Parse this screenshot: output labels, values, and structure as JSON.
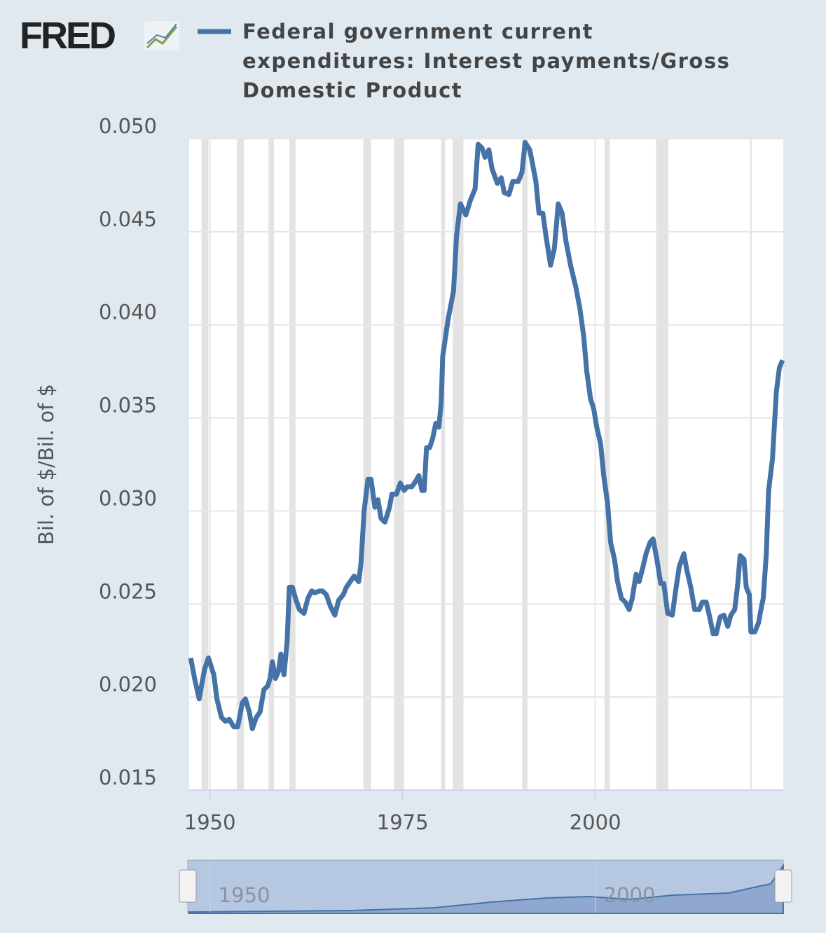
{
  "logo": "FRED",
  "chart_data": {
    "type": "line",
    "series": [
      {
        "name": "Federal government current expenditures: Interest payments/Gross Domestic Product",
        "color": "#4572a7",
        "values": [
          0.0221,
          0.021,
          0.0199,
          0.0215,
          0.0221,
          0.0212,
          0.0199,
          0.0189,
          0.0187,
          0.0188,
          0.0184,
          0.0184,
          0.0197,
          0.0199,
          0.0192,
          0.0183,
          0.0189,
          0.0192,
          0.0204,
          0.0206,
          0.021,
          0.0219,
          0.021,
          0.0214,
          0.0223,
          0.0212,
          0.0229,
          0.0259,
          0.0259,
          0.0253,
          0.0247,
          0.0245,
          0.0253,
          0.0257,
          0.0256,
          0.0257,
          0.0257,
          0.0255,
          0.0249,
          0.0244,
          0.0252,
          0.0255,
          0.0259,
          0.0262,
          0.0265,
          0.0262,
          0.0272,
          0.03,
          0.0317,
          0.0317,
          0.0302,
          0.0306,
          0.0296,
          0.0294,
          0.0302,
          0.0309,
          0.0309,
          0.0315,
          0.0311,
          0.0313,
          0.0313,
          0.0316,
          0.0319,
          0.0311,
          0.0311,
          0.0334,
          0.0334,
          0.0339,
          0.0347,
          0.0345,
          0.0358,
          0.0383,
          0.0403,
          0.0418,
          0.0448,
          0.0465,
          0.0459,
          0.0467,
          0.0473,
          0.0497,
          0.0495,
          0.049,
          0.0494,
          0.0484,
          0.0476,
          0.0479,
          0.0471,
          0.047,
          0.0477,
          0.0477,
          0.0482,
          0.0498,
          0.0494,
          0.0488,
          0.0477,
          0.046,
          0.046,
          0.0448,
          0.0432,
          0.0441,
          0.0465,
          0.046,
          0.0445,
          0.0432,
          0.042,
          0.0409,
          0.0394,
          0.0375,
          0.036,
          0.0355,
          0.0345,
          0.0336,
          0.0319,
          0.0304,
          0.0283,
          0.0274,
          0.0262,
          0.0253,
          0.0251,
          0.0247,
          0.0253,
          0.0266,
          0.0262,
          0.027,
          0.0277,
          0.0283,
          0.0285,
          0.0274,
          0.0261,
          0.0261,
          0.0245,
          0.0244,
          0.0259,
          0.027,
          0.0277,
          0.0268,
          0.0259,
          0.0247,
          0.0247,
          0.0251,
          0.0251,
          0.0244,
          0.0234,
          0.0234,
          0.0243,
          0.0244,
          0.0238,
          0.0244,
          0.0247,
          0.0261,
          0.0276,
          0.0274,
          0.0259,
          0.0255,
          0.0235,
          0.0235,
          0.024,
          0.0247,
          0.0253,
          0.0277,
          0.0311,
          0.0328,
          0.0364,
          0.0377,
          0.0381
        ]
      }
    ],
    "x": [
      1947.5,
      1948.0,
      1948.6,
      1949.3,
      1949.8,
      1950.5,
      1950.9,
      1951.5,
      1952.0,
      1952.5,
      1953.1,
      1953.6,
      1954.2,
      1954.6,
      1955.1,
      1955.5,
      1956.0,
      1956.5,
      1957.0,
      1957.5,
      1957.8,
      1958.1,
      1958.5,
      1958.9,
      1959.2,
      1959.6,
      1960.0,
      1960.3,
      1960.7,
      1961.1,
      1961.6,
      1962.2,
      1962.7,
      1963.2,
      1963.6,
      1964.2,
      1964.6,
      1965.1,
      1965.6,
      1966.2,
      1966.7,
      1967.3,
      1967.7,
      1968.2,
      1968.7,
      1969.3,
      1969.6,
      1970.0,
      1970.5,
      1970.9,
      1971.4,
      1971.8,
      1972.2,
      1972.7,
      1973.3,
      1973.6,
      1974.2,
      1974.7,
      1975.2,
      1975.6,
      1976.2,
      1976.7,
      1977.1,
      1977.5,
      1977.8,
      1978.1,
      1978.5,
      1978.9,
      1979.3,
      1979.7,
      1980.0,
      1980.2,
      1980.9,
      1981.6,
      1982.0,
      1982.5,
      1983.2,
      1983.8,
      1984.4,
      1984.8,
      1985.3,
      1985.7,
      1986.2,
      1986.6,
      1987.3,
      1987.8,
      1988.2,
      1988.8,
      1989.3,
      1990.0,
      1990.5,
      1990.9,
      1991.5,
      1991.8,
      1992.3,
      1992.7,
      1993.2,
      1993.6,
      1994.2,
      1994.7,
      1995.2,
      1995.7,
      1996.2,
      1996.8,
      1997.5,
      1998.0,
      1998.5,
      1998.9,
      1999.4,
      1999.8,
      2000.2,
      2000.7,
      2001.1,
      2001.6,
      2002.0,
      2002.5,
      2002.9,
      2003.4,
      2003.9,
      2004.4,
      2004.8,
      2005.3,
      2005.7,
      2006.2,
      2006.6,
      2007.1,
      2007.5,
      2008.0,
      2008.5,
      2008.9,
      2009.4,
      2010.0,
      2010.5,
      2010.9,
      2011.5,
      2011.9,
      2012.4,
      2012.9,
      2013.5,
      2013.9,
      2014.4,
      2014.8,
      2015.3,
      2015.7,
      2016.2,
      2016.7,
      2017.2,
      2017.6,
      2018.1,
      2018.5,
      2018.8,
      2019.3,
      2019.6,
      2020.0,
      2020.2,
      2020.7,
      2021.2,
      2021.5,
      2021.8,
      2022.2,
      2022.5,
      2023.0,
      2023.5,
      2023.9,
      2024.3
    ],
    "ylabel": "Bil. of $/Bil. of $",
    "xlim": [
      1947.3,
      2024.4
    ],
    "xticks": [
      1950,
      1975,
      2000
    ],
    "ylim": [
      0.015,
      0.05
    ],
    "yticks": [
      0.045,
      {
        "value": 0.04,
        "label": "0.040"
      },
      0.035,
      {
        "value": 0.03,
        "label": "0.030"
      },
      0.025,
      {
        "value": 0.02,
        "label": "0.020"
      },
      0.015,
      {
        "value": 0.05,
        "label": "0.050"
      }
    ],
    "grid": true,
    "recessions": [
      [
        1948.9,
        1949.8
      ],
      [
        1953.5,
        1954.4
      ],
      [
        1957.6,
        1958.3
      ],
      [
        1960.3,
        1961.1
      ],
      [
        1969.9,
        1970.9
      ],
      [
        1973.9,
        1975.2
      ],
      [
        1980.0,
        1980.5
      ],
      [
        1981.5,
        1982.9
      ],
      [
        1990.5,
        1991.2
      ],
      [
        2001.2,
        2001.9
      ],
      [
        2007.9,
        2009.5
      ],
      [
        2020.1,
        2020.3
      ]
    ],
    "navigator": {
      "xticks": [
        1950,
        2000
      ]
    }
  }
}
